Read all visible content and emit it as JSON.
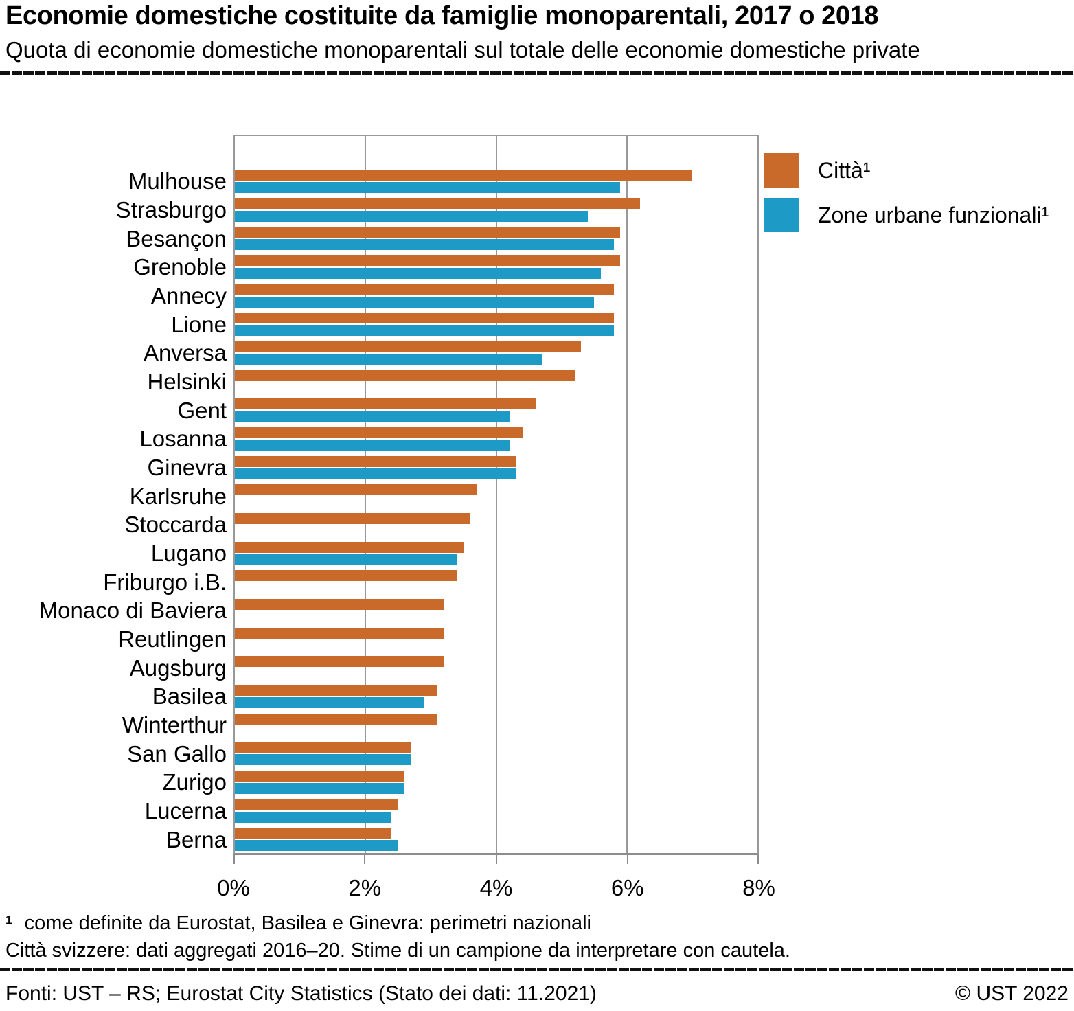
{
  "header": {
    "title": "Economie domestiche costituite da famiglie monoparentali, 2017 o 2018",
    "subtitle": "Quota di economie domestiche monoparentali sul totale delle economie domestiche private"
  },
  "legend": [
    {
      "label": "Città¹",
      "color": "#C96A2B"
    },
    {
      "label": "Zone urbane funzionali¹",
      "color": "#1E9AC6"
    }
  ],
  "chart_data": {
    "type": "bar",
    "orientation": "horizontal",
    "unit": "%",
    "title": "Economie domestiche costituite da famiglie monoparentali, 2017 o 2018",
    "xlabel": "",
    "ylabel": "",
    "xlim": [
      0,
      8
    ],
    "x_ticks": [
      "0%",
      "2%",
      "4%",
      "6%",
      "8%"
    ],
    "x_tick_values": [
      0,
      2,
      4,
      6,
      8
    ],
    "gridline_values": [
      2,
      4,
      6
    ],
    "grid": true,
    "legend_position": "top-right",
    "categories": [
      "Mulhouse",
      "Strasburgo",
      "Besançon",
      "Grenoble",
      "Annecy",
      "Lione",
      "Anversa",
      "Helsinki",
      "Gent",
      "Losanna",
      "Ginevra",
      "Karlsruhe",
      "Stoccarda",
      "Lugano",
      "Friburgo i.B.",
      "Monaco di Baviera",
      "Reutlingen",
      "Augsburg",
      "Basilea",
      "Winterthur",
      "San Gallo",
      "Zurigo",
      "Lucerna",
      "Berna"
    ],
    "series": [
      {
        "name": "Città¹",
        "color": "#C96A2B",
        "values": [
          7.0,
          6.2,
          5.9,
          5.9,
          5.8,
          5.8,
          5.3,
          5.2,
          4.6,
          4.4,
          4.3,
          3.7,
          3.6,
          3.5,
          3.4,
          3.2,
          3.2,
          3.2,
          3.1,
          3.1,
          2.7,
          2.6,
          2.5,
          2.4
        ]
      },
      {
        "name": "Zone urbane funzionali¹",
        "color": "#1E9AC6",
        "values": [
          5.9,
          5.4,
          5.8,
          5.6,
          5.5,
          5.8,
          4.7,
          null,
          4.2,
          4.2,
          4.3,
          null,
          null,
          3.4,
          null,
          null,
          null,
          null,
          2.9,
          null,
          2.7,
          2.6,
          2.4,
          2.5
        ]
      }
    ],
    "axis_color": "#8c8c8c",
    "grid_color": "#999999"
  },
  "footnotes": {
    "marker": "¹",
    "line1": "come definite da Eurostat, Basilea e Ginevra: perimetri nazionali",
    "line2": "Città svizzere: dati aggregati 2016–20. Stime di un campione da interpretare con cautela."
  },
  "footer": {
    "source": "Fonti: UST – RS; Eurostat City Statistics (Stato dei dati: 11.2021)",
    "copyright": "© UST 2022"
  }
}
